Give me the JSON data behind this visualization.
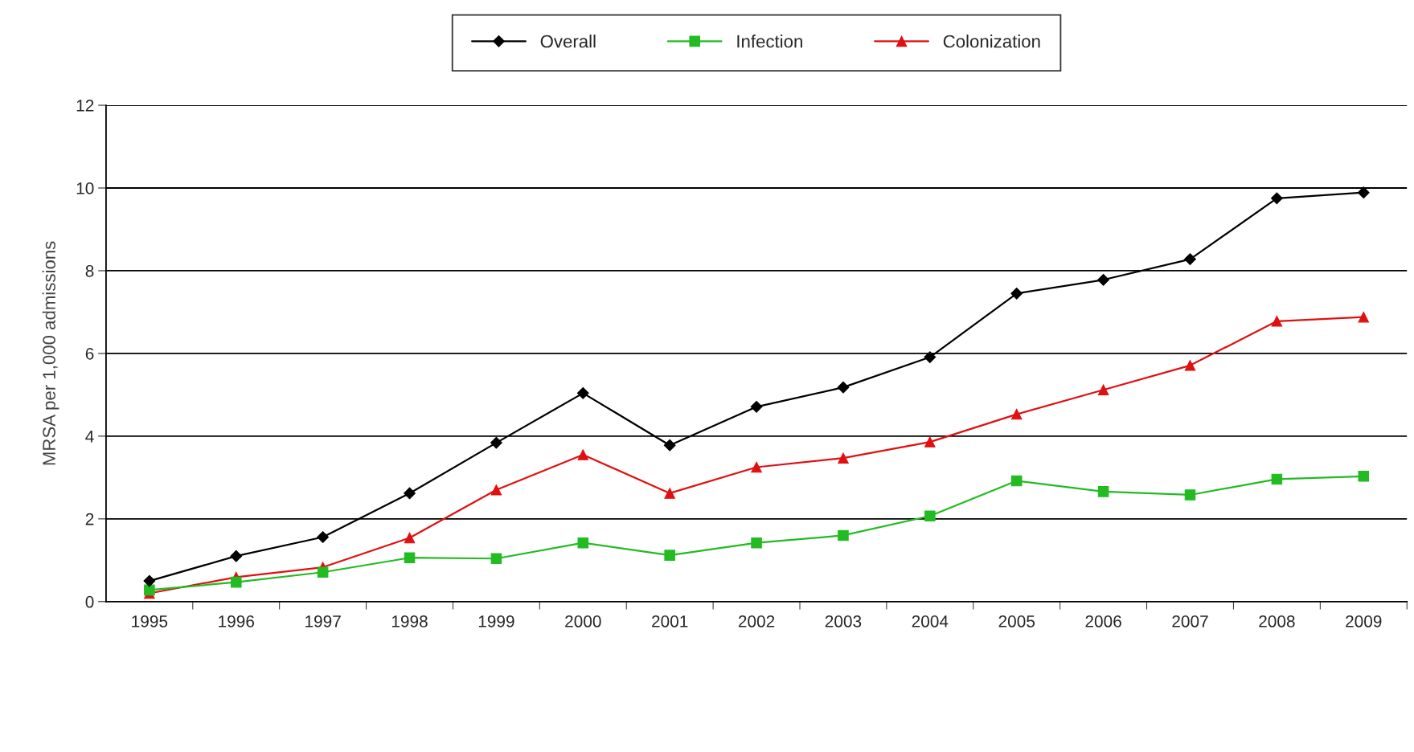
{
  "chart_data": {
    "type": "line",
    "ylabel": "MRSA per 1,000 admissions",
    "categories": [
      "1995",
      "1996",
      "1997",
      "1998",
      "1999",
      "2000",
      "2001",
      "2002",
      "2003",
      "2004",
      "2005",
      "2006",
      "2007",
      "2008",
      "2009"
    ],
    "series": [
      {
        "name": "Overall",
        "color": "#000000",
        "marker": "diamond",
        "values": [
          0.5,
          1.1,
          1.56,
          2.62,
          3.84,
          5.04,
          3.78,
          4.71,
          5.18,
          5.91,
          7.45,
          7.78,
          8.28,
          9.75,
          9.89
        ]
      },
      {
        "name": "Infection",
        "color": "#22bb22",
        "marker": "square",
        "values": [
          0.28,
          0.47,
          0.71,
          1.06,
          1.04,
          1.42,
          1.12,
          1.42,
          1.6,
          2.07,
          2.92,
          2.66,
          2.58,
          2.96,
          3.03
        ]
      },
      {
        "name": "Colonization",
        "color": "#e01010",
        "marker": "triangle",
        "values": [
          0.2,
          0.59,
          0.83,
          1.54,
          2.7,
          3.55,
          2.62,
          3.25,
          3.47,
          3.86,
          4.53,
          5.12,
          5.71,
          6.78,
          6.88
        ]
      }
    ],
    "ylim": [
      0,
      12
    ],
    "yticks": [
      0,
      2,
      4,
      6,
      8,
      10,
      12
    ],
    "grid": "y",
    "legend": "top",
    "line_style": "solid"
  }
}
